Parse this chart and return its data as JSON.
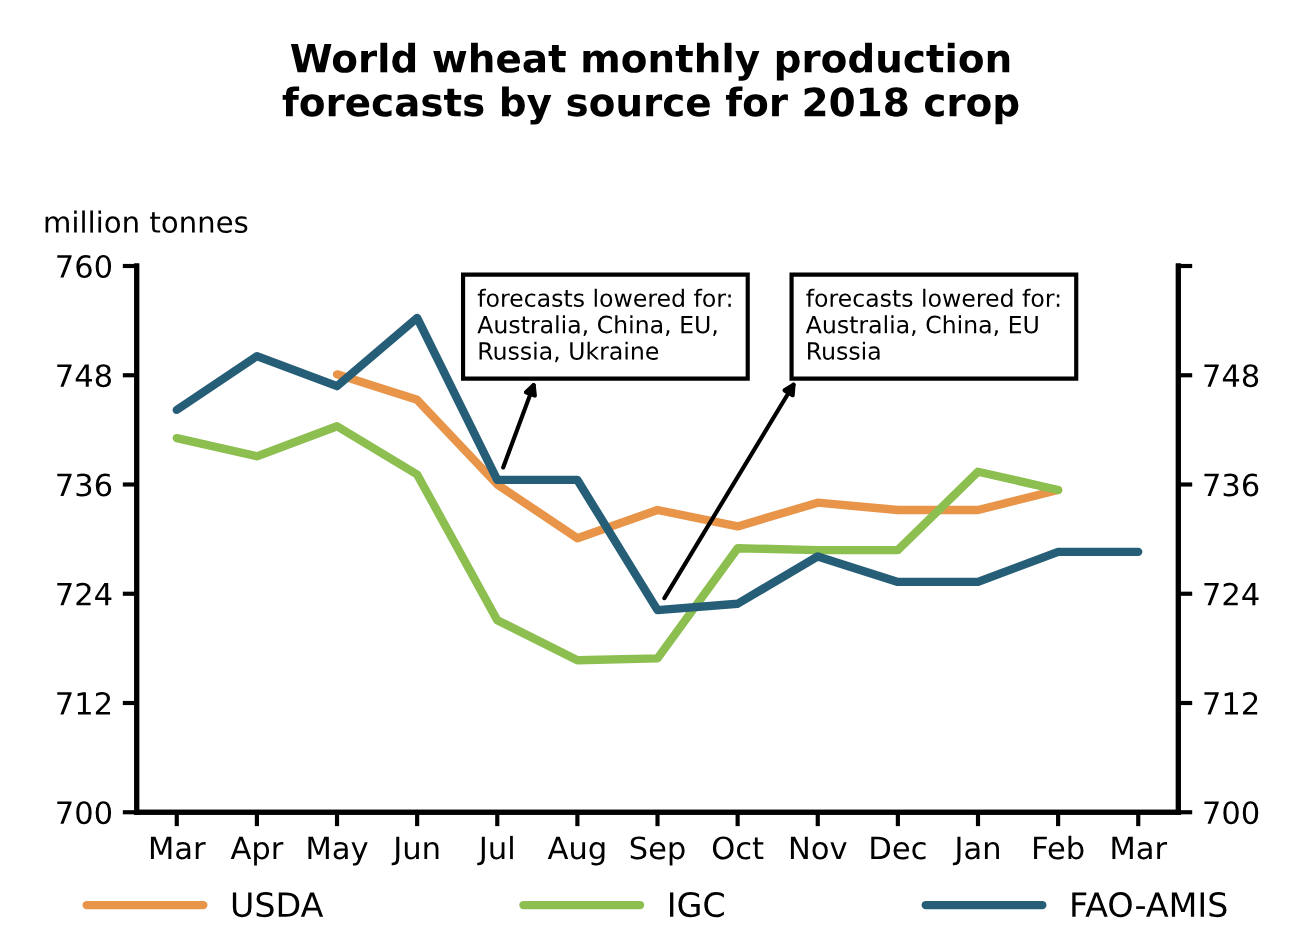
{
  "chart_data": {
    "type": "line",
    "title": "World wheat monthly production\nforecasts by source for 2018 crop",
    "ylabel": "million tonnes",
    "categories": [
      "Mar",
      "Apr",
      "May",
      "Jun",
      "Jul",
      "Aug",
      "Sep",
      "Oct",
      "Nov",
      "Dec",
      "Jan",
      "Feb",
      "Mar"
    ],
    "series": [
      {
        "name": "USDA",
        "color": "#e8954a",
        "values": [
          null,
          null,
          748.1,
          745.3,
          736.0,
          730.1,
          733.2,
          731.4,
          734.0,
          733.2,
          733.2,
          735.4,
          null
        ]
      },
      {
        "name": "IGC",
        "color": "#8cbf4f",
        "values": [
          741.1,
          739.1,
          742.4,
          737.1,
          721.1,
          716.7,
          716.9,
          729.0,
          728.8,
          728.8,
          737.4,
          735.4,
          null
        ]
      },
      {
        "name": "FAO-AMIS",
        "color": "#265e78",
        "values": [
          744.2,
          750.1,
          746.8,
          754.3,
          736.5,
          736.5,
          722.2,
          722.9,
          728.1,
          725.3,
          725.3,
          728.6,
          728.6
        ]
      }
    ],
    "ylim": [
      700,
      760
    ],
    "yticks": [
      700,
      712,
      724,
      736,
      748,
      760
    ],
    "y2lim": [
      700,
      760
    ],
    "y2ticks": [
      700,
      712,
      724,
      736,
      748,
      {
        "value": 760,
        "label": null
      }
    ],
    "annotations": [
      {
        "text": "forecasts lowered for:\nAustralia, China, EU,\nRussia, Ukraine",
        "x": "Jul",
        "y": 736.5
      },
      {
        "text": "forecasts lowered for:\nAustralia, China, EU\nRussia",
        "x": "Sep",
        "y": 722.2
      }
    ],
    "grid": false,
    "legend": "bottom",
    "line_style": "solid",
    "marker": "none"
  }
}
